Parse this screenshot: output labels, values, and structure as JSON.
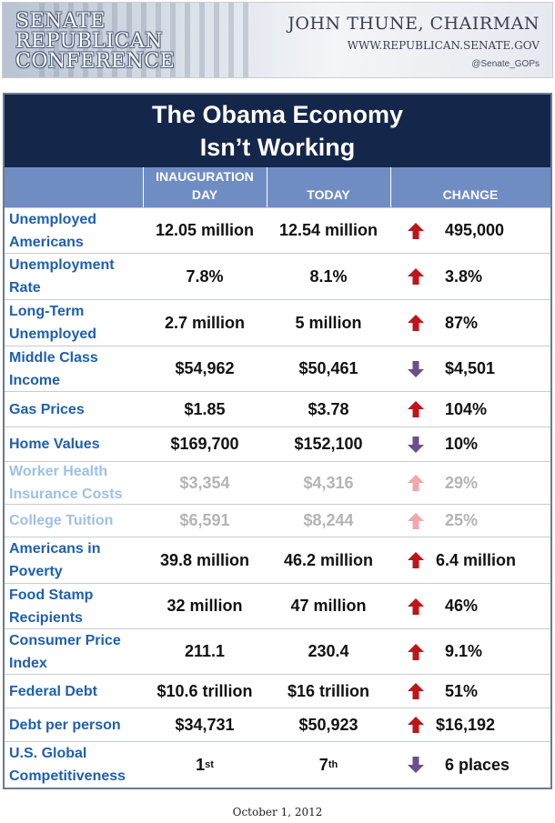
{
  "banner": {
    "org_line1": "SENATE",
    "org_line2": "REPUBLICAN",
    "org_line3": "CONFERENCE",
    "chairman": "JOHN THUNE, CHAIRMAN",
    "website": "WWW.REPUBLICAN.SENATE.GOV",
    "twitter": "@Senate_GOPs"
  },
  "table": {
    "title_line1": "The Obama Economy",
    "title_line2": "Isn’t Working",
    "headers": {
      "inauguration_line1": "INAUGURATION",
      "inauguration_line2": "DAY",
      "today": "TODAY",
      "change": "CHANGE"
    },
    "rows": [
      {
        "label": "Unemployed Americans",
        "inauguration": "12.05 million",
        "today": "12.54 million",
        "direction": "up",
        "change": "495,000"
      },
      {
        "label": "Unemployment Rate",
        "inauguration": "7.8%",
        "today": "8.1%",
        "direction": "up",
        "change": "3.8%"
      },
      {
        "label": "Long-Term Unemployed",
        "inauguration": "2.7 million",
        "today": "5 million",
        "direction": "up",
        "change": "87%"
      },
      {
        "label": "Middle Class Income",
        "inauguration": "$54,962",
        "today": "$50,461",
        "direction": "down",
        "change": "$4,501"
      },
      {
        "label": "Gas Prices",
        "inauguration": "$1.85",
        "today": "$3.78",
        "direction": "up",
        "change": "104%"
      },
      {
        "label": "Home Values",
        "inauguration": "$169,700",
        "today": "$152,100",
        "direction": "down",
        "change": "10%"
      },
      {
        "label": "Worker Health Insurance Costs",
        "inauguration": "$3,354",
        "today": "$4,316",
        "direction": "up",
        "change": "29%"
      },
      {
        "label": "College Tuition",
        "inauguration": "$6,591",
        "today": "$8,244",
        "direction": "up",
        "change": "25%"
      },
      {
        "label": "Americans in Poverty",
        "inauguration": "39.8 million",
        "today": "46.2 million",
        "direction": "up",
        "change": "6.4 million"
      },
      {
        "label": "Food Stamp Recipients",
        "inauguration": "32 million",
        "today": "47 million",
        "direction": "up",
        "change": "46%"
      },
      {
        "label": "Consumer Price Index",
        "inauguration": "211.1",
        "today": "230.4",
        "direction": "up",
        "change": "9.1%"
      },
      {
        "label": "Federal Debt",
        "inauguration": "$10.6 trillion",
        "today": "$16 trillion",
        "direction": "up",
        "change": "51%"
      },
      {
        "label": "Debt per person",
        "inauguration": "$34,731",
        "today": "$50,923",
        "direction": "up",
        "change": "$16,192"
      },
      {
        "label": "U.S. Global Competitiveness",
        "inauguration": "1",
        "inauguration_suffix": "st",
        "today": "7",
        "today_suffix": "th",
        "direction": "down",
        "change": "6 places"
      }
    ]
  },
  "colors": {
    "title_bg": "#14274a",
    "header_bg": "#6f8dc3",
    "label_text": "#1f5fae",
    "arrow_up": "#c0141b",
    "arrow_down": "#6a4f8c"
  },
  "footer": {
    "date": "October 1, 2012"
  }
}
